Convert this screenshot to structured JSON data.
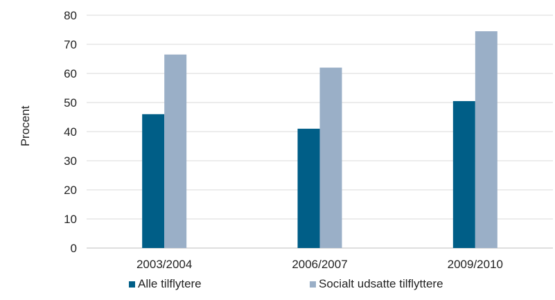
{
  "chart_data": {
    "type": "bar",
    "title": "",
    "xlabel": "",
    "ylabel": "Procent",
    "ylim": [
      0,
      80
    ],
    "yticks": [
      0,
      10,
      20,
      30,
      40,
      50,
      60,
      70,
      80
    ],
    "grid": true,
    "legend_position": "bottom",
    "categories": [
      "2003/2004",
      "2006/2007",
      "2009/2010"
    ],
    "series": [
      {
        "name": "Alle tilflytere",
        "color": "#005e87",
        "values": [
          46,
          41,
          50.5
        ]
      },
      {
        "name": "Socialt udsatte tilflyttere",
        "color": "#9aafc7",
        "values": [
          66.5,
          62,
          74.5
        ]
      }
    ]
  }
}
